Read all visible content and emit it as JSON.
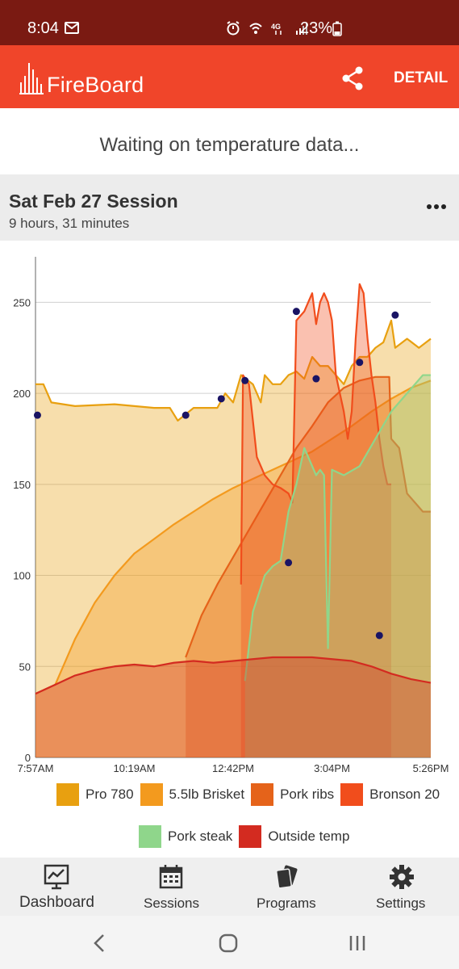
{
  "status_bar": {
    "time": "8:04",
    "battery": "23%"
  },
  "app_bar": {
    "brand": "FireBoard",
    "detail_label": "DETAIL",
    "brand_color": "#f0452a"
  },
  "waiting_message": "Waiting on temperature data...",
  "session": {
    "title": "Sat Feb 27 Session",
    "duration": "9 hours, 31 minutes"
  },
  "chart_data": {
    "type": "area",
    "x_ticks": [
      "7:57AM",
      "10:19AM",
      "12:42PM",
      "3:04PM",
      "5:26PM"
    ],
    "y_ticks": [
      "0",
      "50",
      "100",
      "150",
      "200",
      "250"
    ],
    "ylim": [
      0,
      275
    ],
    "grid": true,
    "legend_position": "bottom",
    "series": [
      {
        "name": "Pro 780",
        "color": "#e8a010",
        "points": [
          [
            0,
            205
          ],
          [
            0.02,
            205
          ],
          [
            0.04,
            195
          ],
          [
            0.1,
            193
          ],
          [
            0.2,
            194
          ],
          [
            0.3,
            192
          ],
          [
            0.34,
            192
          ],
          [
            0.36,
            185
          ],
          [
            0.4,
            192
          ],
          [
            0.46,
            192
          ],
          [
            0.48,
            200
          ],
          [
            0.5,
            195
          ],
          [
            0.52,
            210
          ],
          [
            0.55,
            205
          ],
          [
            0.57,
            195
          ],
          [
            0.58,
            210
          ],
          [
            0.6,
            205
          ],
          [
            0.62,
            205
          ],
          [
            0.64,
            210
          ],
          [
            0.66,
            212
          ],
          [
            0.68,
            208
          ],
          [
            0.7,
            220
          ],
          [
            0.72,
            215
          ],
          [
            0.74,
            215
          ],
          [
            0.76,
            210
          ],
          [
            0.78,
            205
          ],
          [
            0.8,
            215
          ],
          [
            0.82,
            220
          ],
          [
            0.84,
            220
          ],
          [
            0.86,
            225
          ],
          [
            0.88,
            228
          ],
          [
            0.9,
            240
          ],
          [
            0.91,
            225
          ],
          [
            0.94,
            230
          ],
          [
            0.97,
            225
          ],
          [
            1,
            230
          ]
        ]
      },
      {
        "name": "5.5lb Brisket",
        "color": "#f39a1e",
        "points": [
          [
            0,
            35
          ],
          [
            0.05,
            40
          ],
          [
            0.1,
            65
          ],
          [
            0.15,
            85
          ],
          [
            0.2,
            100
          ],
          [
            0.25,
            112
          ],
          [
            0.3,
            120
          ],
          [
            0.35,
            128
          ],
          [
            0.4,
            135
          ],
          [
            0.45,
            142
          ],
          [
            0.5,
            148
          ],
          [
            0.55,
            153
          ],
          [
            0.6,
            158
          ],
          [
            0.65,
            163
          ],
          [
            0.7,
            168
          ],
          [
            0.75,
            175
          ],
          [
            0.8,
            182
          ],
          [
            0.85,
            190
          ],
          [
            0.9,
            197
          ],
          [
            0.95,
            203
          ],
          [
            1,
            207
          ]
        ]
      },
      {
        "name": "Pork ribs",
        "color": "#e5631a",
        "points": [
          [
            0.38,
            55
          ],
          [
            0.42,
            78
          ],
          [
            0.46,
            95
          ],
          [
            0.5,
            110
          ],
          [
            0.54,
            125
          ],
          [
            0.58,
            140
          ],
          [
            0.62,
            155
          ],
          [
            0.66,
            170
          ],
          [
            0.7,
            182
          ],
          [
            0.74,
            195
          ],
          [
            0.78,
            203
          ],
          [
            0.82,
            207
          ],
          [
            0.86,
            209
          ],
          [
            0.895,
            209
          ],
          [
            0.9,
            175
          ],
          [
            0.92,
            170
          ],
          [
            0.94,
            145
          ],
          [
            0.96,
            140
          ],
          [
            0.98,
            135
          ],
          [
            1,
            135
          ]
        ]
      },
      {
        "name": "Bronson 20",
        "color": "#f14d1c",
        "points": [
          [
            0.52,
            95
          ],
          [
            0.525,
            210
          ],
          [
            0.54,
            205
          ],
          [
            0.56,
            165
          ],
          [
            0.58,
            155
          ],
          [
            0.6,
            150
          ],
          [
            0.62,
            148
          ],
          [
            0.64,
            145
          ],
          [
            0.65,
            140
          ],
          [
            0.66,
            240
          ],
          [
            0.68,
            245
          ],
          [
            0.7,
            255
          ],
          [
            0.71,
            238
          ],
          [
            0.72,
            250
          ],
          [
            0.73,
            255
          ],
          [
            0.74,
            250
          ],
          [
            0.75,
            240
          ],
          [
            0.76,
            210
          ],
          [
            0.78,
            190
          ],
          [
            0.79,
            175
          ],
          [
            0.8,
            190
          ],
          [
            0.81,
            230
          ],
          [
            0.82,
            260
          ],
          [
            0.83,
            255
          ],
          [
            0.84,
            230
          ],
          [
            0.85,
            210
          ],
          [
            0.86,
            195
          ],
          [
            0.87,
            175
          ],
          [
            0.88,
            160
          ],
          [
            0.89,
            150
          ],
          [
            0.9,
            150
          ]
        ]
      },
      {
        "name": "Pork steak",
        "color": "#8fd68b",
        "points": [
          [
            0.53,
            42
          ],
          [
            0.55,
            80
          ],
          [
            0.58,
            100
          ],
          [
            0.6,
            105
          ],
          [
            0.62,
            108
          ],
          [
            0.64,
            135
          ],
          [
            0.66,
            150
          ],
          [
            0.68,
            170
          ],
          [
            0.7,
            160
          ],
          [
            0.71,
            155
          ],
          [
            0.72,
            158
          ],
          [
            0.73,
            155
          ],
          [
            0.74,
            60
          ],
          [
            0.75,
            158
          ],
          [
            0.78,
            155
          ],
          [
            0.82,
            160
          ],
          [
            0.86,
            175
          ],
          [
            0.9,
            190
          ],
          [
            0.94,
            200
          ],
          [
            0.98,
            210
          ],
          [
            1,
            210
          ]
        ]
      },
      {
        "name": "Outside temp",
        "color": "#d32b20",
        "points": [
          [
            0,
            35
          ],
          [
            0.05,
            40
          ],
          [
            0.1,
            45
          ],
          [
            0.15,
            48
          ],
          [
            0.2,
            50
          ],
          [
            0.25,
            51
          ],
          [
            0.3,
            50
          ],
          [
            0.35,
            52
          ],
          [
            0.4,
            53
          ],
          [
            0.45,
            52
          ],
          [
            0.5,
            53
          ],
          [
            0.55,
            54
          ],
          [
            0.6,
            55
          ],
          [
            0.65,
            55
          ],
          [
            0.7,
            55
          ],
          [
            0.75,
            54
          ],
          [
            0.8,
            53
          ],
          [
            0.85,
            50
          ],
          [
            0.9,
            46
          ],
          [
            0.95,
            43
          ],
          [
            1,
            41
          ]
        ]
      }
    ],
    "markers": [
      [
        0.005,
        188
      ],
      [
        0.38,
        188
      ],
      [
        0.47,
        197
      ],
      [
        0.53,
        207
      ],
      [
        0.64,
        107
      ],
      [
        0.66,
        245
      ],
      [
        0.71,
        208
      ],
      [
        0.82,
        217
      ],
      [
        0.87,
        67
      ],
      [
        0.91,
        243
      ]
    ]
  },
  "bottom_nav": {
    "items": [
      {
        "label": "Dashboard",
        "icon": "dashboard-icon"
      },
      {
        "label": "Sessions",
        "icon": "calendar-icon"
      },
      {
        "label": "Programs",
        "icon": "programs-icon"
      },
      {
        "label": "Settings",
        "icon": "gear-icon"
      }
    ]
  }
}
